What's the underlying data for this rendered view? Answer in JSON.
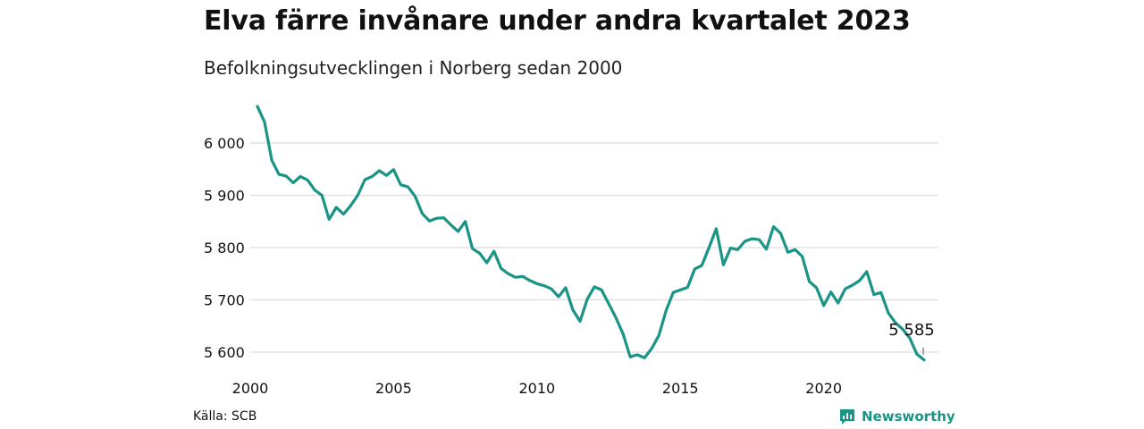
{
  "title": "Elva färre invånare under andra kvartalet 2023",
  "subtitle": "Befolkningsutvecklingen i Norberg sedan 2000",
  "source": "Källa: SCB",
  "brand": "Newsworthy",
  "colors": {
    "line": "#1a9485",
    "grid": "#dddddd",
    "brand": "#1a9485"
  },
  "chart_data": {
    "type": "line",
    "title": "Elva färre invånare under andra kvartalet 2023",
    "xlabel": "",
    "ylabel": "",
    "x_tick_labels": [
      "2000",
      "2005",
      "2010",
      "2015",
      "2020"
    ],
    "x_ticks": [
      2000,
      2005,
      2010,
      2015,
      2020
    ],
    "y_tick_labels": [
      "5 600",
      "5 700",
      "5 800",
      "5 900",
      "6 000"
    ],
    "y_ticks": [
      5600,
      5700,
      5800,
      5900,
      6000
    ],
    "xlim": [
      2000,
      2024
    ],
    "ylim": [
      5580,
      6080
    ],
    "grid": true,
    "end_label": "5 585",
    "series": [
      {
        "x": [
          2000.25,
          2000.5,
          2000.75,
          2001.0,
          2001.25,
          2001.5,
          2001.75,
          2002.0,
          2002.25,
          2002.5,
          2002.75,
          2003.0,
          2003.25,
          2003.5,
          2003.75,
          2004.0,
          2004.25,
          2004.5,
          2004.75,
          2005.0,
          2005.25,
          2005.5,
          2005.75,
          2006.0,
          2006.25,
          2006.5,
          2006.75,
          2007.0,
          2007.25,
          2007.5,
          2007.75,
          2008.0,
          2008.25,
          2008.5,
          2008.75,
          2009.0,
          2009.25,
          2009.5,
          2009.75,
          2010.0,
          2010.25,
          2010.5,
          2010.75,
          2011.0,
          2011.25,
          2011.5,
          2011.75,
          2012.0,
          2012.25,
          2012.5,
          2012.75,
          2013.0,
          2013.25,
          2013.5,
          2013.75,
          2014.0,
          2014.25,
          2014.5,
          2014.75,
          2015.0,
          2015.25,
          2015.5,
          2015.75,
          2016.0,
          2016.25,
          2016.5,
          2016.75,
          2017.0,
          2017.25,
          2017.5,
          2017.75,
          2018.0,
          2018.25,
          2018.5,
          2018.75,
          2019.0,
          2019.25,
          2019.5,
          2019.75,
          2020.0,
          2020.25,
          2020.5,
          2020.75,
          2021.0,
          2021.25,
          2021.5,
          2021.75,
          2022.0,
          2022.25,
          2022.5,
          2022.75,
          2023.0,
          2023.25,
          2023.5
        ],
        "values": [
          6070,
          6040,
          5967,
          5940,
          5937,
          5924,
          5936,
          5929,
          5910,
          5900,
          5854,
          5877,
          5864,
          5880,
          5900,
          5930,
          5936,
          5947,
          5938,
          5949,
          5920,
          5916,
          5898,
          5865,
          5851,
          5856,
          5857,
          5843,
          5831,
          5850,
          5798,
          5789,
          5771,
          5793,
          5760,
          5750,
          5743,
          5745,
          5737,
          5731,
          5727,
          5721,
          5706,
          5723,
          5681,
          5659,
          5701,
          5725,
          5719,
          5693,
          5666,
          5635,
          5591,
          5595,
          5589,
          5607,
          5632,
          5679,
          5714,
          5719,
          5724,
          5759,
          5766,
          5800,
          5836,
          5767,
          5799,
          5796,
          5812,
          5817,
          5815,
          5797,
          5840,
          5827,
          5791,
          5796,
          5783,
          5735,
          5723,
          5689,
          5715,
          5694,
          5721,
          5728,
          5737,
          5754,
          5710,
          5714,
          5675,
          5656,
          5644,
          5627,
          5596,
          5585
        ]
      }
    ]
  }
}
